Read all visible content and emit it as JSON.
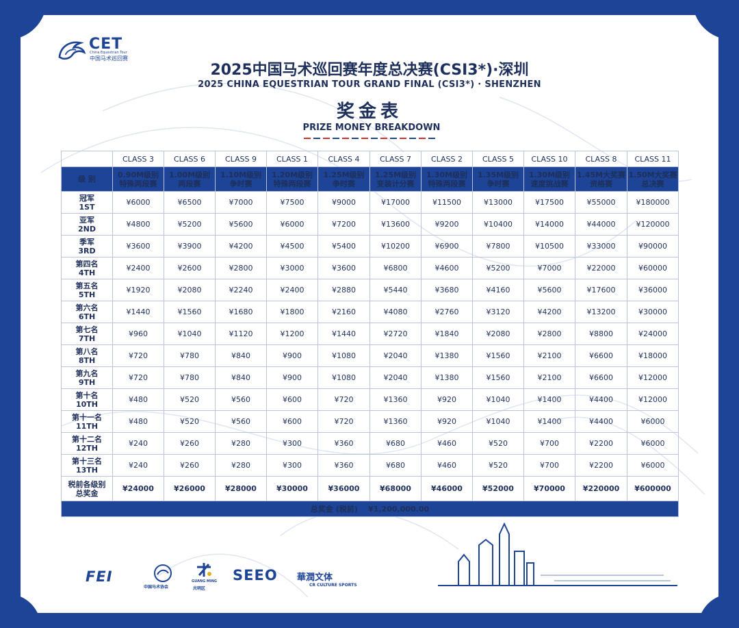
{
  "logo": {
    "name": "CET",
    "sub_en": "China Equestrian Tour",
    "sub_cn": "中国马术巡回赛"
  },
  "title_cn": "2025中国马术巡回赛年度总决赛(CSI3*)·深圳",
  "title_en": "2025 CHINA EQUESTRIAN TOUR GRAND FINAL (CSI3*) · SHENZHEN",
  "heading_cn": "奖金表",
  "heading_en": "PRIZE MONEY BREAKDOWN",
  "table": {
    "level_header": "级 别",
    "classes": [
      "CLASS 3",
      "CLASS 6",
      "CLASS 9",
      "CLASS 1",
      "CLASS 4",
      "CLASS 7",
      "CLASS 2",
      "CLASS 5",
      "CLASS 10",
      "CLASS 8",
      "CLASS 11"
    ],
    "levels": [
      {
        "l1": "0.90M级别",
        "l2": "特殊两段赛"
      },
      {
        "l1": "1.00M级别",
        "l2": "两段赛"
      },
      {
        "l1": "1.10M级别",
        "l2": "争时赛"
      },
      {
        "l1": "1.20M级别",
        "l2": "特殊两段赛"
      },
      {
        "l1": "1.25M级别",
        "l2": "争时赛"
      },
      {
        "l1": "1.25M级别",
        "l2": "变装计分赛"
      },
      {
        "l1": "1.30M级别",
        "l2": "特殊两段赛"
      },
      {
        "l1": "1.35M级别",
        "l2": "争时赛"
      },
      {
        "l1": "1.30M级别",
        "l2": "速度挑战赛"
      },
      {
        "l1": "1.45M大奖赛",
        "l2": "资格赛"
      },
      {
        "l1": "1.50M大奖赛",
        "l2": "总决赛"
      }
    ],
    "rows": [
      {
        "cn": "冠军",
        "en": "1ST",
        "values": [
          "¥6000",
          "¥6500",
          "¥7000",
          "¥7500",
          "¥9000",
          "¥17000",
          "¥11500",
          "¥13000",
          "¥17500",
          "¥55000",
          "¥180000"
        ]
      },
      {
        "cn": "亚军",
        "en": "2ND",
        "values": [
          "¥4800",
          "¥5200",
          "¥5600",
          "¥6000",
          "¥7200",
          "¥13600",
          "¥9200",
          "¥10400",
          "¥14000",
          "¥44000",
          "¥120000"
        ]
      },
      {
        "cn": "季军",
        "en": "3RD",
        "values": [
          "¥3600",
          "¥3900",
          "¥4200",
          "¥4500",
          "¥5400",
          "¥10200",
          "¥6900",
          "¥7800",
          "¥10500",
          "¥33000",
          "¥90000"
        ]
      },
      {
        "cn": "第四名",
        "en": "4TH",
        "values": [
          "¥2400",
          "¥2600",
          "¥2800",
          "¥3000",
          "¥3600",
          "¥6800",
          "¥4600",
          "¥5200",
          "¥7000",
          "¥22000",
          "¥60000"
        ]
      },
      {
        "cn": "第五名",
        "en": "5TH",
        "values": [
          "¥1920",
          "¥2080",
          "¥2240",
          "¥2400",
          "¥2880",
          "¥5440",
          "¥3680",
          "¥4160",
          "¥5600",
          "¥17600",
          "¥36000"
        ]
      },
      {
        "cn": "第六名",
        "en": "6TH",
        "values": [
          "¥1440",
          "¥1560",
          "¥1680",
          "¥1800",
          "¥2160",
          "¥4080",
          "¥2760",
          "¥3120",
          "¥4200",
          "¥13200",
          "¥30000"
        ]
      },
      {
        "cn": "第七名",
        "en": "7TH",
        "values": [
          "¥960",
          "¥1040",
          "¥1120",
          "¥1200",
          "¥1440",
          "¥2720",
          "¥1840",
          "¥2080",
          "¥2800",
          "¥8800",
          "¥24000"
        ]
      },
      {
        "cn": "第八名",
        "en": "8TH",
        "values": [
          "¥720",
          "¥780",
          "¥840",
          "¥900",
          "¥1080",
          "¥2040",
          "¥1380",
          "¥1560",
          "¥2100",
          "¥6600",
          "¥18000"
        ]
      },
      {
        "cn": "第九名",
        "en": "9TH",
        "values": [
          "¥720",
          "¥780",
          "¥840",
          "¥900",
          "¥1080",
          "¥2040",
          "¥1380",
          "¥1560",
          "¥2100",
          "¥6600",
          "¥12000"
        ]
      },
      {
        "cn": "第十名",
        "en": "10TH",
        "values": [
          "¥480",
          "¥520",
          "¥560",
          "¥600",
          "¥720",
          "¥1360",
          "¥920",
          "¥1040",
          "¥1400",
          "¥4400",
          "¥12000"
        ]
      },
      {
        "cn": "第十一名",
        "en": "11TH",
        "values": [
          "¥480",
          "¥520",
          "¥560",
          "¥600",
          "¥720",
          "¥1360",
          "¥920",
          "¥1040",
          "¥1400",
          "¥4400",
          "¥6000"
        ]
      },
      {
        "cn": "第十二名",
        "en": "12TH",
        "values": [
          "¥240",
          "¥260",
          "¥280",
          "¥300",
          "¥360",
          "¥680",
          "¥460",
          "¥520",
          "¥700",
          "¥2200",
          "¥6000"
        ]
      },
      {
        "cn": "第十三名",
        "en": "13TH",
        "values": [
          "¥240",
          "¥260",
          "¥280",
          "¥300",
          "¥360",
          "¥680",
          "¥460",
          "¥520",
          "¥700",
          "¥2200",
          "¥6000"
        ]
      }
    ],
    "total_row": {
      "cn1": "税前各级别",
      "cn2": "总奖金",
      "values": [
        "¥24000",
        "¥26000",
        "¥28000",
        "¥30000",
        "¥36000",
        "¥68000",
        "¥46000",
        "¥52000",
        "¥70000",
        "¥220000",
        "¥600000"
      ]
    },
    "grand_total": "总奖金 (税前)    ¥1,200,000.00"
  },
  "sponsors": {
    "fei": "FEI",
    "cea": "中国马术协会",
    "guangming_1": "GUANG MING",
    "guangming_2": "光明区",
    "seeo": "SEEO",
    "cr_cn": "華潤文体",
    "cr_en": "CR CULTURE SPORTS"
  },
  "colors": {
    "brand_blue": "#1d4496",
    "text_navy": "#1d2f5a",
    "accent_red": "#d4302b"
  }
}
